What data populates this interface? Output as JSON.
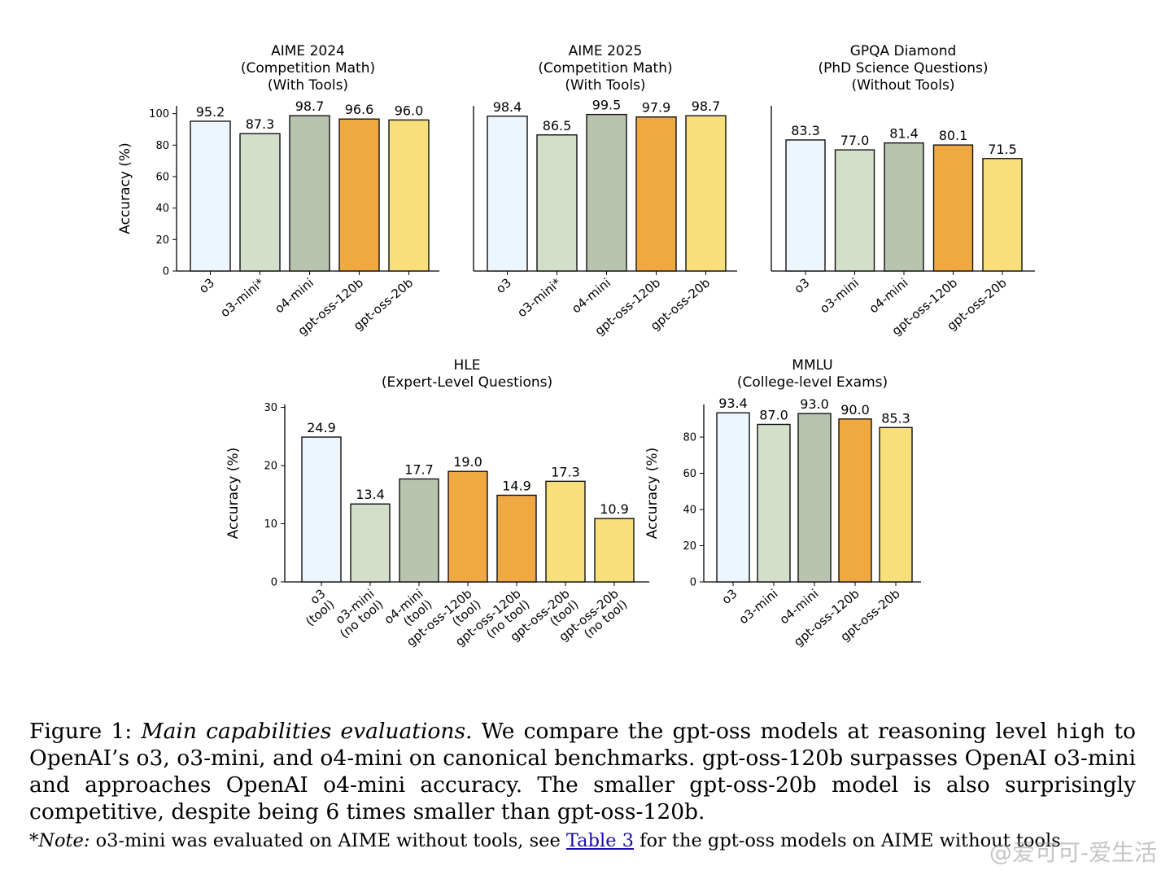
{
  "chart_data": [
    {
      "type": "bar",
      "title": [
        "AIME 2024",
        "(Competition Math)",
        "(With Tools)"
      ],
      "ylabel": "Accuracy (%)",
      "ylim": [
        0,
        105
      ],
      "yticks": [
        0,
        20,
        40,
        60,
        80,
        100
      ],
      "categories": [
        "o3",
        "o3-mini*",
        "o4-mini",
        "gpt-oss-120b",
        "gpt-oss-20b"
      ],
      "values": [
        95.2,
        87.3,
        98.7,
        96.6,
        96.0
      ],
      "value_labels": [
        "95.2",
        "87.3",
        "98.7",
        "96.6",
        "96.0"
      ],
      "colors": [
        "#eef6fd",
        "#d4dfc9",
        "#b8c4ae",
        "#f0a843",
        "#f7df7c"
      ]
    },
    {
      "type": "bar",
      "title": [
        "AIME 2025",
        "(Competition Math)",
        "(With Tools)"
      ],
      "ylabel": "",
      "ylim": [
        0,
        105
      ],
      "yticks": [],
      "categories": [
        "o3",
        "o3-mini*",
        "o4-mini",
        "gpt-oss-120b",
        "gpt-oss-20b"
      ],
      "values": [
        98.4,
        86.5,
        99.5,
        97.9,
        98.7
      ],
      "value_labels": [
        "98.4",
        "86.5",
        "99.5",
        "97.9",
        "98.7"
      ],
      "colors": [
        "#eef6fd",
        "#d4dfc9",
        "#b8c4ae",
        "#f0a843",
        "#f7df7c"
      ]
    },
    {
      "type": "bar",
      "title": [
        "GPQA Diamond",
        "(PhD Science Questions)",
        "(Without Tools)"
      ],
      "ylabel": "",
      "ylim": [
        0,
        105
      ],
      "yticks": [],
      "categories": [
        "o3",
        "o3-mini",
        "o4-mini",
        "gpt-oss-120b",
        "gpt-oss-20b"
      ],
      "values": [
        83.3,
        77.0,
        81.4,
        80.1,
        71.5
      ],
      "value_labels": [
        "83.3",
        "77.0",
        "81.4",
        "80.1",
        "71.5"
      ],
      "colors": [
        "#eef6fd",
        "#d4dfc9",
        "#b8c4ae",
        "#f0a843",
        "#f7df7c"
      ]
    },
    {
      "type": "bar",
      "title": [
        "HLE",
        "(Expert-Level Questions)"
      ],
      "ylabel": "Accuracy (%)",
      "ylim": [
        0,
        30.5
      ],
      "yticks": [
        0,
        10,
        20,
        30
      ],
      "categories": [
        "o3 (tool)",
        "o3-mini (no tool)",
        "o4-mini (tool)",
        "gpt-oss-120b (tool)",
        "gpt-oss-120b (no tool)",
        "gpt-oss-20b (tool)",
        "gpt-oss-20b (no tool)"
      ],
      "category_lines": [
        [
          "o3",
          "(tool)"
        ],
        [
          "o3-mini",
          "(no tool)"
        ],
        [
          "o4-mini",
          "(tool)"
        ],
        [
          "gpt-oss-120b",
          "(tool)"
        ],
        [
          "gpt-oss-120b",
          "(no tool)"
        ],
        [
          "gpt-oss-20b",
          "(tool)"
        ],
        [
          "gpt-oss-20b",
          "(no tool)"
        ]
      ],
      "values": [
        24.9,
        13.4,
        17.7,
        19.0,
        14.9,
        17.3,
        10.9
      ],
      "value_labels": [
        "24.9",
        "13.4",
        "17.7",
        "19.0",
        "14.9",
        "17.3",
        "10.9"
      ],
      "colors": [
        "#eef6fd",
        "#d4dfc9",
        "#b8c4ae",
        "#f0a843",
        "#f0a843",
        "#f7df7c",
        "#f7df7c"
      ]
    },
    {
      "type": "bar",
      "title": [
        "MMLU",
        "(College-level Exams)"
      ],
      "ylabel": "Accuracy (%)",
      "ylim": [
        0,
        98
      ],
      "yticks": [
        0,
        20,
        40,
        60,
        80
      ],
      "categories": [
        "o3",
        "o3-mini",
        "o4-mini",
        "gpt-oss-120b",
        "gpt-oss-20b"
      ],
      "values": [
        93.4,
        87.0,
        93.0,
        90.0,
        85.3
      ],
      "value_labels": [
        "93.4",
        "87.0",
        "93.0",
        "90.0",
        "85.3"
      ],
      "colors": [
        "#eef6fd",
        "#d4dfc9",
        "#b8c4ae",
        "#f0a843",
        "#f7df7c"
      ]
    }
  ],
  "caption": {
    "label": "Figure 1:",
    "title": "Main capabilities evaluations.",
    "text_1": "We compare the gpt-oss models at reasoning level",
    "mono": "high",
    "text_2": "to OpenAI’s o3, o3-mini, and o4-mini on canonical benchmarks. gpt-oss-120b surpasses OpenAI o3-mini and approaches OpenAI o4-mini accuracy. The smaller gpt-oss-20b model is also surprisingly competitive, despite being 6 times smaller than gpt-oss-120b."
  },
  "note": {
    "label": "*Note:",
    "text_1": "o3-mini was evaluated on AIME without tools, see",
    "link": "Table 3",
    "text_2": "for the gpt-oss models on AIME without tools"
  },
  "watermark": "@爱可可-爱生活"
}
